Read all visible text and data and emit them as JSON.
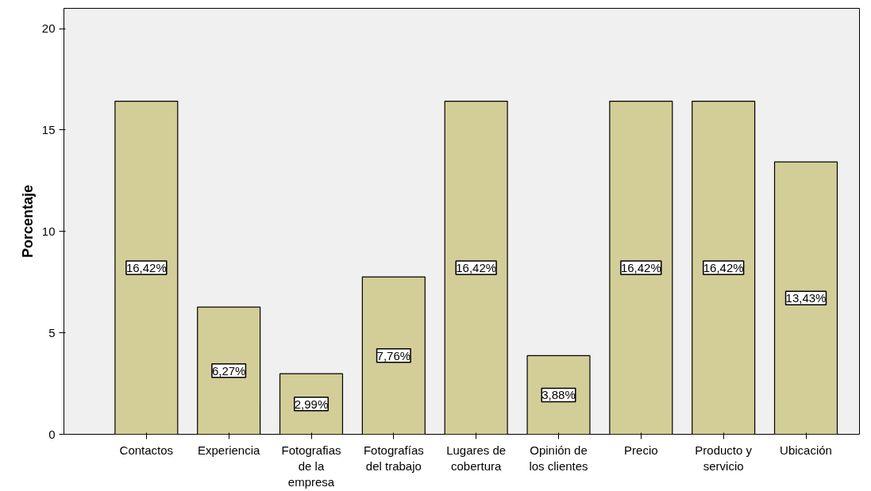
{
  "chart_data": {
    "type": "bar",
    "ylabel": "Porcentaje",
    "categories": [
      "Contactos",
      "Experiencia",
      "Fotografias\nde la\nempresa",
      "Fotografías\ndel trabajo",
      "Lugares de\ncobertura",
      "Opinión de\nlos clientes",
      "Precio",
      "Producto y\nservicio",
      "Ubicación"
    ],
    "values": [
      16.42,
      6.27,
      2.99,
      7.76,
      16.42,
      3.88,
      16.42,
      16.42,
      13.43
    ],
    "value_labels": [
      "16,42%",
      "6,27%",
      "2,99%",
      "7,76%",
      "16,42%",
      "3,88%",
      "16,42%",
      "16,42%",
      "13,43%"
    ],
    "color": "#d3ce97",
    "ylim": [
      0,
      21
    ],
    "yticks": [
      0,
      5,
      10,
      15,
      20
    ],
    "grid": false
  }
}
